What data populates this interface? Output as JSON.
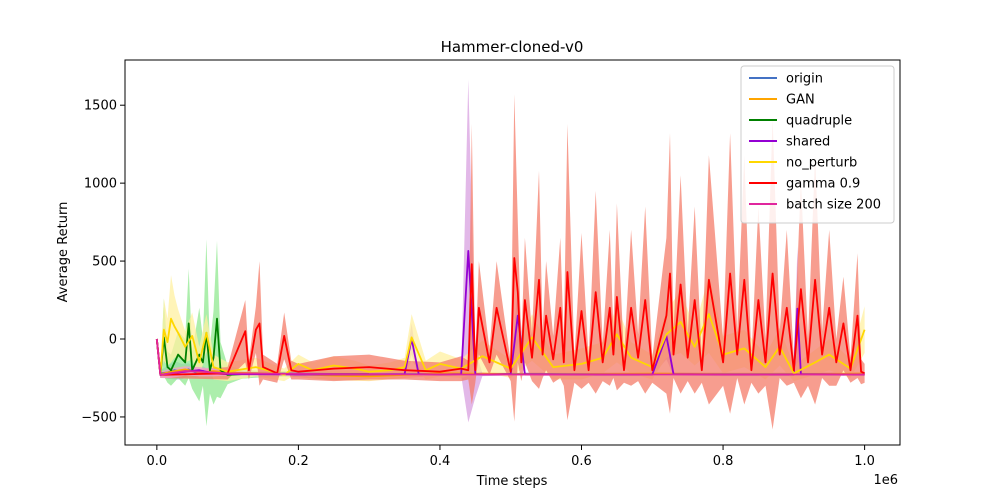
{
  "chart_data": {
    "type": "line",
    "title": "Hammer-cloned-v0",
    "xlabel": "Time steps",
    "ylabel": "Average Return",
    "x_offset_label": "1e6",
    "x_scale": 1000000,
    "xlim": [
      -0.045,
      1.05
    ],
    "ylim": [
      -680,
      1790
    ],
    "x_ticks": [
      0.0,
      0.2,
      0.4,
      0.6,
      0.8,
      1.0
    ],
    "x_tick_labels": [
      "0.0",
      "0.2",
      "0.4",
      "0.6",
      "0.8",
      "1.0"
    ],
    "y_ticks": [
      -500,
      0,
      500,
      1000,
      1500
    ],
    "y_tick_labels": [
      "−500",
      "0",
      "500",
      "1000",
      "1500"
    ],
    "grid": false,
    "legend_position": "upper right",
    "series": [
      {
        "name": "origin",
        "color": "#4472c4",
        "band_color": "#a0b4e8",
        "x": [
          0.0,
          0.005,
          0.015,
          0.025,
          0.035,
          0.045,
          0.055,
          0.065,
          0.075,
          0.085,
          0.1,
          0.12,
          0.15,
          0.2,
          0.3,
          0.4,
          0.5,
          0.6,
          0.7,
          0.8,
          0.9,
          1.0
        ],
        "y": [
          0,
          -220,
          -215,
          -200,
          -210,
          -195,
          -215,
          -205,
          -220,
          -210,
          -215,
          -220,
          -220,
          -222,
          -225,
          -225,
          -224,
          -225,
          -225,
          -225,
          -225,
          -224
        ],
        "band": [
          0,
          20,
          40,
          60,
          50,
          40,
          30,
          30,
          20,
          20,
          10,
          10,
          10,
          10,
          5,
          5,
          5,
          5,
          5,
          5,
          5,
          5
        ]
      },
      {
        "name": "GAN",
        "color": "#ffa500",
        "band_color": "#ffd080",
        "x": [
          0.0,
          0.005,
          0.02,
          0.04,
          0.06,
          0.08,
          0.1,
          0.15,
          0.2,
          0.25,
          0.3,
          0.35,
          0.4,
          0.5,
          0.6,
          0.7,
          0.8,
          0.9,
          1.0
        ],
        "y": [
          0,
          -225,
          -210,
          -195,
          -215,
          -205,
          -215,
          -220,
          -225,
          -235,
          -240,
          -230,
          -220,
          -225,
          -225,
          -222,
          -225,
          -225,
          -222
        ],
        "band": [
          0,
          15,
          25,
          25,
          20,
          15,
          15,
          15,
          20,
          30,
          30,
          20,
          15,
          10,
          10,
          10,
          10,
          10,
          10
        ]
      },
      {
        "name": "quadruple",
        "color": "#008000",
        "band_color": "#90e890",
        "x": [
          0.0,
          0.005,
          0.01,
          0.015,
          0.02,
          0.03,
          0.04,
          0.045,
          0.05,
          0.06,
          0.065,
          0.07,
          0.075,
          0.08,
          0.085,
          0.09,
          0.1,
          0.12,
          0.15,
          0.2,
          0.3
        ],
        "y": [
          0,
          -230,
          10,
          -180,
          -200,
          -100,
          -150,
          100,
          -200,
          -100,
          -150,
          40,
          -200,
          -120,
          130,
          -200,
          -230,
          -225,
          -225,
          -225,
          -225
        ],
        "band": [
          0,
          20,
          250,
          100,
          100,
          150,
          150,
          350,
          120,
          300,
          150,
          600,
          150,
          300,
          500,
          180,
          60,
          30,
          20,
          15,
          10
        ]
      },
      {
        "name": "shared",
        "color": "#9400d3",
        "band_color": "#d8a0e0",
        "x": [
          0.0,
          0.005,
          0.02,
          0.04,
          0.06,
          0.08,
          0.1,
          0.2,
          0.3,
          0.35,
          0.36,
          0.37,
          0.4,
          0.43,
          0.44,
          0.45,
          0.46,
          0.5,
          0.51,
          0.52,
          0.6,
          0.7,
          0.72,
          0.73,
          0.8,
          0.9,
          0.905,
          0.91,
          1.0
        ],
        "y": [
          0,
          -230,
          -220,
          -210,
          -200,
          -220,
          -225,
          -228,
          -228,
          -225,
          0,
          -225,
          -228,
          -225,
          565,
          -225,
          -228,
          -225,
          150,
          -225,
          -228,
          -228,
          20,
          -225,
          -228,
          -228,
          195,
          -225,
          -228
        ],
        "band": [
          0,
          20,
          20,
          20,
          20,
          15,
          10,
          10,
          10,
          10,
          100,
          10,
          10,
          10,
          1100,
          150,
          10,
          10,
          200,
          10,
          10,
          10,
          150,
          10,
          10,
          10,
          400,
          10,
          10
        ]
      },
      {
        "name": "no_perturb",
        "color": "#ffd700",
        "band_color": "#fff0a0",
        "x": [
          0.0,
          0.005,
          0.01,
          0.015,
          0.02,
          0.025,
          0.03,
          0.04,
          0.05,
          0.06,
          0.07,
          0.08,
          0.1,
          0.14,
          0.18,
          0.2,
          0.22,
          0.25,
          0.28,
          0.3,
          0.33,
          0.35,
          0.36,
          0.38,
          0.4,
          0.43,
          0.46,
          0.5,
          0.53,
          0.56,
          0.6,
          0.63,
          0.65,
          0.67,
          0.7,
          0.72,
          0.74,
          0.76,
          0.78,
          0.8,
          0.83,
          0.86,
          0.88,
          0.9,
          0.93,
          0.95,
          0.98,
          1.0
        ],
        "y": [
          0,
          -220,
          60,
          -20,
          130,
          80,
          40,
          -50,
          20,
          -150,
          40,
          -180,
          -210,
          -180,
          -230,
          -160,
          -200,
          -170,
          -190,
          -210,
          -200,
          -180,
          10,
          -200,
          -160,
          -190,
          -110,
          -190,
          10,
          -180,
          -160,
          -120,
          30,
          -120,
          -180,
          30,
          110,
          -50,
          160,
          -100,
          -60,
          -180,
          -50,
          -220,
          -150,
          -100,
          -190,
          60
        ],
        "band": [
          0,
          20,
          200,
          150,
          280,
          200,
          150,
          100,
          150,
          100,
          120,
          80,
          60,
          60,
          40,
          60,
          50,
          60,
          50,
          40,
          50,
          60,
          150,
          60,
          80,
          60,
          100,
          60,
          150,
          80,
          100,
          100,
          180,
          100,
          80,
          150,
          200,
          120,
          250,
          120,
          120,
          80,
          120,
          50,
          80,
          100,
          60,
          150
        ]
      },
      {
        "name": "gamma 0.9",
        "color": "#ff0000",
        "band_color": "#f47c6a",
        "x": [
          0.0,
          0.005,
          0.1,
          0.125,
          0.13,
          0.14,
          0.145,
          0.15,
          0.17,
          0.18,
          0.19,
          0.2,
          0.25,
          0.3,
          0.35,
          0.4,
          0.43,
          0.44,
          0.445,
          0.45,
          0.455,
          0.47,
          0.48,
          0.5,
          0.505,
          0.51,
          0.515,
          0.52,
          0.53,
          0.54,
          0.545,
          0.55,
          0.56,
          0.57,
          0.575,
          0.58,
          0.59,
          0.6,
          0.61,
          0.62,
          0.63,
          0.64,
          0.645,
          0.65,
          0.66,
          0.67,
          0.68,
          0.69,
          0.7,
          0.72,
          0.725,
          0.73,
          0.74,
          0.75,
          0.76,
          0.77,
          0.78,
          0.8,
          0.81,
          0.82,
          0.83,
          0.84,
          0.85,
          0.86,
          0.87,
          0.88,
          0.89,
          0.9,
          0.91,
          0.92,
          0.93,
          0.94,
          0.95,
          0.96,
          0.97,
          0.98,
          0.99,
          0.995,
          1.0
        ],
        "y": [
          0,
          -230,
          -220,
          50,
          -200,
          60,
          100,
          -180,
          -220,
          20,
          -200,
          -210,
          -190,
          -180,
          -200,
          -210,
          -190,
          -200,
          480,
          -200,
          200,
          -150,
          200,
          -210,
          520,
          300,
          -150,
          250,
          -120,
          380,
          -100,
          150,
          -130,
          200,
          -150,
          430,
          -200,
          180,
          -200,
          300,
          -150,
          200,
          -100,
          270,
          -200,
          200,
          -120,
          250,
          -200,
          150,
          420,
          -100,
          350,
          -120,
          250,
          -200,
          380,
          -150,
          420,
          -100,
          380,
          -200,
          250,
          -150,
          420,
          -100,
          200,
          -200,
          320,
          -150,
          380,
          -100,
          200,
          -150,
          100,
          -200,
          150,
          -210,
          -220
        ],
        "band": [
          0,
          20,
          40,
          200,
          60,
          150,
          400,
          80,
          60,
          150,
          60,
          50,
          80,
          80,
          60,
          60,
          80,
          60,
          900,
          80,
          300,
          80,
          300,
          60,
          1050,
          450,
          120,
          400,
          150,
          700,
          150,
          350,
          150,
          450,
          150,
          950,
          80,
          500,
          80,
          650,
          120,
          500,
          150,
          600,
          80,
          500,
          150,
          600,
          80,
          500,
          900,
          150,
          700,
          150,
          600,
          80,
          800,
          150,
          900,
          150,
          800,
          80,
          600,
          150,
          1000,
          150,
          500,
          80,
          700,
          150,
          800,
          150,
          500,
          150,
          300,
          80,
          400,
          80,
          60
        ]
      },
      {
        "name": "batch size 200",
        "color": "#e0269e",
        "band_color": "#f0a0d0",
        "x": [
          0.0,
          0.005,
          0.02,
          0.04,
          0.06,
          0.08,
          0.1,
          0.15,
          0.2,
          0.3,
          0.4,
          0.5,
          0.6,
          0.7,
          0.8,
          0.9,
          1.0
        ],
        "y": [
          0,
          -230,
          -220,
          -205,
          -210,
          -215,
          -220,
          -222,
          -224,
          -226,
          -228,
          -228,
          -228,
          -228,
          -228,
          -228,
          -228
        ],
        "band": [
          0,
          20,
          30,
          30,
          30,
          25,
          15,
          10,
          8,
          6,
          6,
          6,
          6,
          6,
          6,
          6,
          6
        ]
      }
    ]
  }
}
